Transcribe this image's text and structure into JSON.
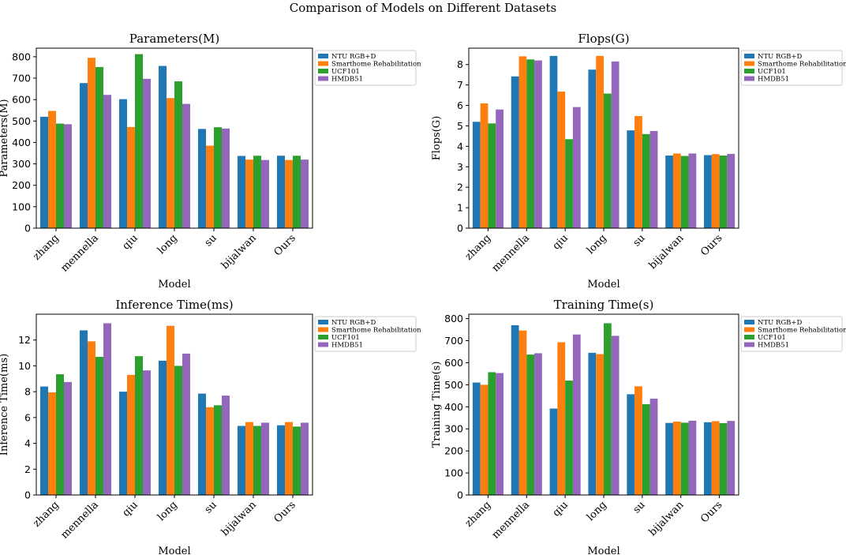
{
  "figure_title": "Comparison of Models on Different Datasets",
  "colors": {
    "NTU RGB+D": "#1f77b4",
    "Smarthome Rehabilitation": "#ff7f0e",
    "UCF101": "#2ca02c",
    "HMDB51": "#9467bd"
  },
  "chart_data": [
    {
      "type": "bar",
      "title": "Parameters(M)",
      "xlabel": "Model",
      "ylabel": "Parameters(M)",
      "categories": [
        "zhang",
        "mennella",
        "qiu",
        "long",
        "su",
        "bijalwan",
        "Ours"
      ],
      "ylim": [
        0,
        840
      ],
      "yticks": [
        0,
        100,
        200,
        300,
        400,
        500,
        600,
        700,
        800
      ],
      "series": [
        {
          "name": "NTU RGB+D",
          "values": [
            520,
            677,
            602,
            757,
            463,
            337,
            338
          ]
        },
        {
          "name": "Smarthome Rehabilitation",
          "values": [
            547,
            795,
            472,
            607,
            385,
            320,
            318
          ]
        },
        {
          "name": "UCF101",
          "values": [
            488,
            752,
            812,
            685,
            471,
            338,
            338
          ]
        },
        {
          "name": "HMDB51",
          "values": [
            485,
            622,
            697,
            580,
            465,
            318,
            320
          ]
        }
      ]
    },
    {
      "type": "bar",
      "title": "Flops(G)",
      "xlabel": "Model",
      "ylabel": "Flops(G)",
      "categories": [
        "zhang",
        "mennella",
        "qiu",
        "long",
        "su",
        "bijalwan",
        "Ours"
      ],
      "ylim": [
        0,
        8.8
      ],
      "yticks": [
        0,
        1,
        2,
        3,
        4,
        5,
        6,
        7,
        8
      ],
      "series": [
        {
          "name": "NTU RGB+D",
          "values": [
            5.2,
            7.42,
            8.42,
            7.75,
            4.78,
            3.55,
            3.57
          ]
        },
        {
          "name": "Smarthome Rehabilitation",
          "values": [
            6.1,
            8.4,
            6.68,
            8.42,
            5.48,
            3.65,
            3.62
          ]
        },
        {
          "name": "UCF101",
          "values": [
            5.12,
            8.25,
            4.35,
            6.58,
            4.6,
            3.53,
            3.55
          ]
        },
        {
          "name": "HMDB51",
          "values": [
            5.8,
            8.2,
            5.92,
            8.15,
            4.75,
            3.65,
            3.63
          ]
        }
      ]
    },
    {
      "type": "bar",
      "title": "Inference Time(ms)",
      "xlabel": "Model",
      "ylabel": "Inference Time(ms)",
      "categories": [
        "zhang",
        "mennella",
        "qiu",
        "long",
        "su",
        "bijalwan",
        "Ours"
      ],
      "ylim": [
        0,
        14
      ],
      "yticks": [
        0,
        2,
        4,
        6,
        8,
        10,
        12
      ],
      "series": [
        {
          "name": "NTU RGB+D",
          "values": [
            8.4,
            12.75,
            8.0,
            10.4,
            7.85,
            5.35,
            5.4
          ]
        },
        {
          "name": "Smarthome Rehabilitation",
          "values": [
            7.95,
            11.9,
            9.3,
            13.1,
            6.8,
            5.65,
            5.65
          ]
        },
        {
          "name": "UCF101",
          "values": [
            9.35,
            10.7,
            10.75,
            10.0,
            6.95,
            5.35,
            5.3
          ]
        },
        {
          "name": "HMDB51",
          "values": [
            8.75,
            13.3,
            9.65,
            10.95,
            7.7,
            5.6,
            5.6
          ]
        }
      ]
    },
    {
      "type": "bar",
      "title": "Training Time(s)",
      "xlabel": "Model",
      "ylabel": "Training Time(s)",
      "categories": [
        "zhang",
        "mennella",
        "qiu",
        "long",
        "su",
        "bijalwan",
        "Ours"
      ],
      "ylim": [
        0,
        820
      ],
      "yticks": [
        0,
        100,
        200,
        300,
        400,
        500,
        600,
        700,
        800
      ],
      "series": [
        {
          "name": "NTU RGB+D",
          "values": [
            510,
            770,
            392,
            645,
            457,
            327,
            330
          ]
        },
        {
          "name": "Smarthome Rehabilitation",
          "values": [
            500,
            746,
            693,
            639,
            493,
            333,
            335
          ]
        },
        {
          "name": "UCF101",
          "values": [
            557,
            637,
            519,
            779,
            412,
            328,
            326
          ]
        },
        {
          "name": "HMDB51",
          "values": [
            553,
            643,
            728,
            722,
            437,
            337,
            336
          ]
        }
      ]
    }
  ]
}
